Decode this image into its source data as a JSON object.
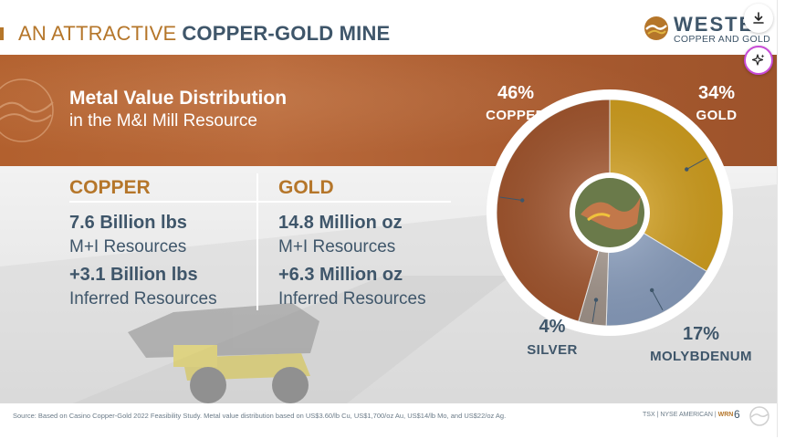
{
  "header": {
    "title_plain": "AN ATTRACTIVE",
    "title_accent": "COPPER-GOLD MINE"
  },
  "logo": {
    "wordmark": "WESTERN",
    "sub": "COPPER AND GOLD"
  },
  "banner": {
    "title": "Metal Value Distribution",
    "subtitle": "in the M&I Mill Resource"
  },
  "columns": [
    {
      "heading": "COPPER",
      "mi_value": "7.6 Billion lbs",
      "mi_label": "M+I Resources",
      "inf_value": "+3.1 Billion lbs",
      "inf_label": "Inferred Resources"
    },
    {
      "heading": "GOLD",
      "mi_value": "14.8 Million oz",
      "mi_label": "M+I Resources",
      "inf_value": "+6.3 Million oz",
      "inf_label": "Inferred Resources"
    }
  ],
  "chart_data": {
    "type": "pie",
    "categories": [
      "GOLD",
      "MOLYBDENUM",
      "SILVER",
      "COPPER"
    ],
    "values": [
      34,
      17,
      4,
      46
    ],
    "labels": [
      "34%",
      "17%",
      "4%",
      "46%"
    ],
    "colors": [
      "#d9a520",
      "#8ea3c4",
      "#a89a90",
      "#a95a31"
    ]
  },
  "footer": {
    "source": "Source: Based on Casino Copper-Gold 2022 Feasibility Study. Metal value distribution based on US$3.60/lb Cu, US$1,700/oz Au, US$14/lb Mo, and US$22/oz Ag.",
    "exchange_prefix": "TSX | NYSE AMERICAN |",
    "ticker": "WRN",
    "page_number": "6"
  },
  "icons": {
    "download": "download-icon",
    "sparkle": "sparkle-icon"
  }
}
